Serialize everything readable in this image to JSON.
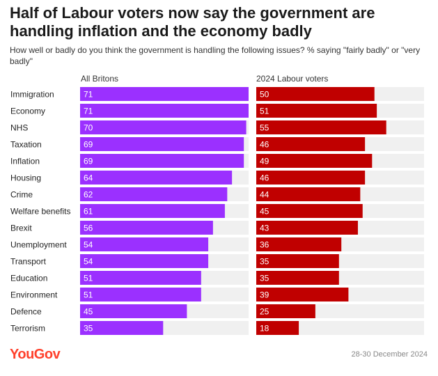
{
  "title": "Half of Labour voters now say the government are handling inflation and the economy badly",
  "subtitle": "How well or badly do you think the government is handling the following issues? % saying \"fairly badly\" or \"very badly\"",
  "brand": "YouGov",
  "date": "28-30 December 2024",
  "colors": {
    "all_britons": "#9b30ff",
    "labour_voters": "#c00000",
    "track": "#f0f0f0",
    "brand": "#ff412c"
  },
  "chart_data": {
    "type": "bar",
    "orientation": "horizontal",
    "categories": [
      "Immigration",
      "Economy",
      "NHS",
      "Taxation",
      "Inflation",
      "Housing",
      "Crime",
      "Welfare benefits",
      "Brexit",
      "Unemployment",
      "Transport",
      "Education",
      "Environment",
      "Defence",
      "Terrorism"
    ],
    "series": [
      {
        "name": "All Britons",
        "values": [
          71,
          71,
          70,
          69,
          69,
          64,
          62,
          61,
          56,
          54,
          54,
          51,
          51,
          45,
          35
        ]
      },
      {
        "name": "2024 Labour voters",
        "values": [
          50,
          51,
          55,
          46,
          49,
          46,
          44,
          45,
          43,
          36,
          35,
          35,
          39,
          25,
          18
        ]
      }
    ],
    "xlim": [
      0,
      71
    ],
    "grid": false,
    "data_labels": true
  }
}
